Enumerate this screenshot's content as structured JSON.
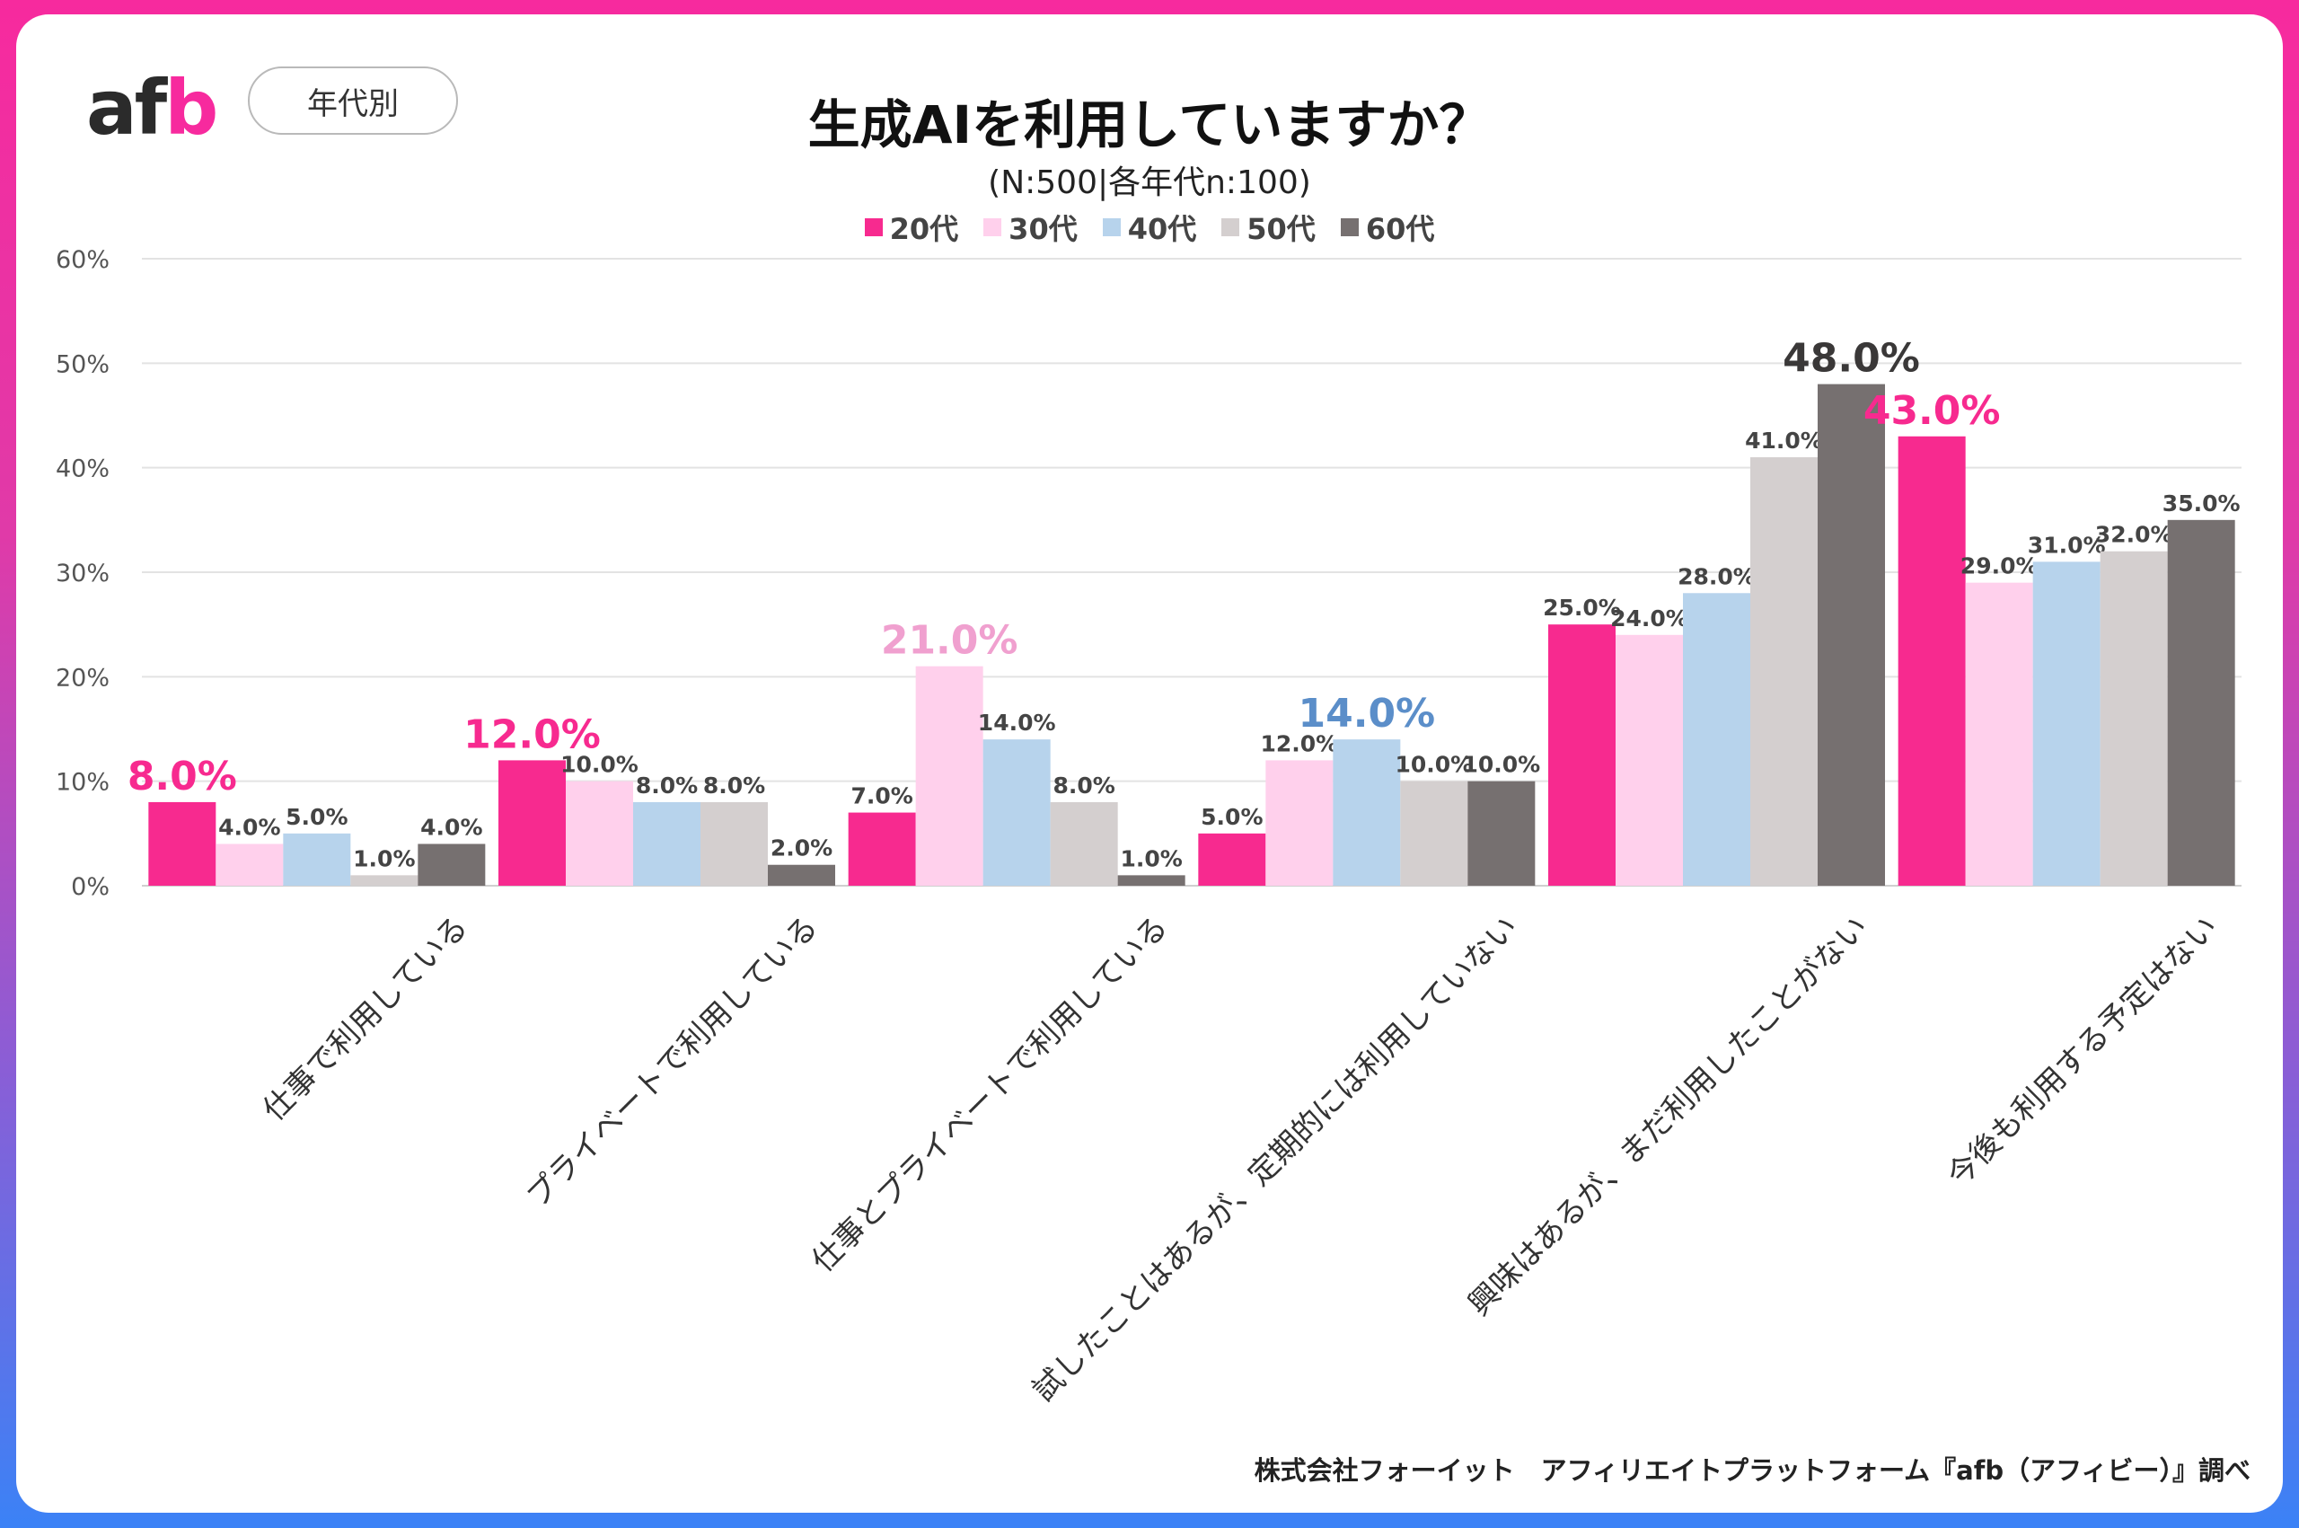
{
  "logo": {
    "text_main": "af",
    "text_accent": "b"
  },
  "tag": {
    "label": "年代別"
  },
  "source": "株式会社フォーイット　アフィリエイトプラットフォーム『afb（アフィビー）』調べ",
  "chart_data": {
    "type": "bar",
    "title": "生成AIを利用していますか？",
    "subtitle": "(N:500|各年代n:100)",
    "xlabel": "",
    "ylabel": "",
    "ylim": [
      0,
      60
    ],
    "yticks": [
      "0%",
      "10%",
      "20%",
      "30%",
      "40%",
      "50%",
      "60%"
    ],
    "grid": true,
    "legend_position": "top",
    "categories": [
      "仕事で利用している",
      "プライベートで利用している",
      "仕事とプライベートで利用している",
      "試したことはあるが、定期的には利用していない",
      "興味はあるが、まだ利用したことがない",
      "今後も利用する予定はない"
    ],
    "series": [
      {
        "name": "20代",
        "color": "#f72a8f",
        "values": [
          8.0,
          12.0,
          7.0,
          5.0,
          25.0,
          43.0
        ]
      },
      {
        "name": "30代",
        "color": "#ffd0ec",
        "values": [
          4.0,
          10.0,
          21.0,
          12.0,
          24.0,
          29.0
        ]
      },
      {
        "name": "40代",
        "color": "#b7d3ec",
        "values": [
          5.0,
          8.0,
          14.0,
          14.0,
          28.0,
          31.0
        ]
      },
      {
        "name": "50代",
        "color": "#d4cfcf",
        "values": [
          1.0,
          8.0,
          8.0,
          10.0,
          41.0,
          32.0
        ]
      },
      {
        "name": "60代",
        "color": "#767070",
        "values": [
          4.0,
          2.0,
          1.0,
          10.0,
          48.0,
          35.0
        ]
      }
    ],
    "labels": [
      [
        "8.0%",
        "4.0%",
        "5.0%",
        "1.0%",
        "4.0%"
      ],
      [
        "12.0%",
        "10.0%",
        "8.0%",
        "8.0%",
        "2.0%"
      ],
      [
        "7.0%",
        "21.0%",
        "14.0%",
        "8.0%",
        "1.0%"
      ],
      [
        "5.0%",
        "12.0%",
        "14.0%",
        "10.0%",
        "10.0%"
      ],
      [
        "25.0%",
        "24.0%",
        "28.0%",
        "41.0%",
        "48.0%"
      ],
      [
        "43.0%",
        "29.0%",
        "31.0%",
        "32.0%",
        "35.0%"
      ]
    ],
    "highlight": [
      0,
      0,
      1,
      2,
      4,
      0
    ],
    "highlight_colors": [
      "#f72a8f",
      "#f0a0cf",
      "#5b8ec9",
      "#9a9a9a",
      "#3a3838"
    ]
  }
}
